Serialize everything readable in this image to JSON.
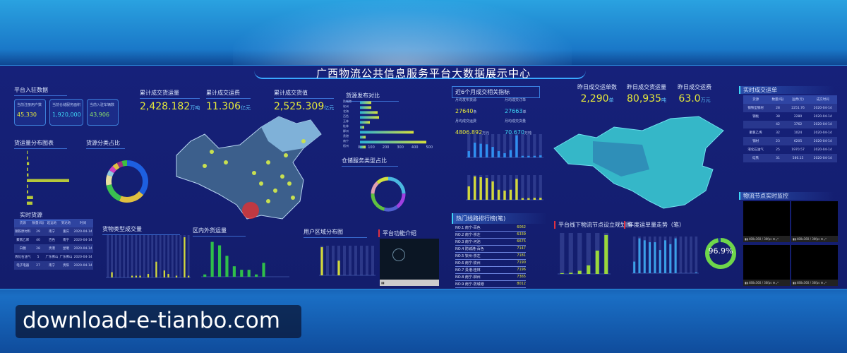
{
  "title": "广西物流公共信息服务平台大数据展示中心",
  "platform": {
    "heading": "平台入驻数据",
    "cards": [
      {
        "label": "当前注册用户数",
        "value": "45,330"
      },
      {
        "label": "当前仓储服务面积",
        "value": "1,920,000"
      },
      {
        "label": "当前入驻车辆数",
        "value": "43,906"
      }
    ]
  },
  "totals": [
    {
      "label": "累计成交货运量",
      "value": "2,428.182",
      "unit": "万吨"
    },
    {
      "label": "累计成交运费",
      "value": "11.306",
      "unit": "亿元"
    },
    {
      "label": "累计成交货值",
      "value": "2,525.309",
      "unit": "亿元"
    }
  ],
  "yesterday": [
    {
      "label": "昨日成交运单数",
      "value": "2,290",
      "unit": "单"
    },
    {
      "label": "昨日成交货运量",
      "value": "80,935",
      "unit": "吨"
    },
    {
      "label": "昨日成交运费",
      "value": "63.0",
      "unit": "万元"
    }
  ],
  "panels": {
    "freight_dist": "货运量分布图表",
    "cargo_share": "货源分类占比",
    "source_compare": "货源发布对比",
    "storage_share": "仓储服务类型占比",
    "realtime_source": "实时货源",
    "cargo_volume": "货物类型成交量",
    "in_out": "区内外货运量",
    "user_region": "用户区域分布图",
    "intro": "平台功能介绍",
    "six_month": "近6个月成交相关指标",
    "realtime_orders": "实时成交运单",
    "monitor": "物流节点实时监控",
    "hot_routes": "热门线路排行榜(笔)",
    "node_plan": "平台线下物流节点设立规划图",
    "annual": "年度运单量走势（笔）"
  },
  "six_month": [
    {
      "label": "月均发布货源",
      "value": "27640",
      "unit": "条"
    },
    {
      "label": "月均成交订单",
      "value": "27663",
      "unit": "单"
    },
    {
      "label": "月均成交运费",
      "value": "4806.892",
      "unit": "万元"
    },
    {
      "label": "月均成交货量",
      "value": "70.670",
      "unit": "万吨"
    }
  ],
  "realtime_source": {
    "headers": [
      "货源",
      "数量(吨)",
      "起运地",
      "到达地",
      "时间"
    ],
    "rows": [
      [
        "钢铁原材料",
        "29",
        "南宁",
        "重庆",
        "2020-04-14"
      ],
      [
        "聚氯乙烯",
        "40",
        "百色",
        "南宁",
        "2020-04-14"
      ],
      [
        "白糖",
        "28",
        "贵港",
        "昆明",
        "2020-04-14"
      ],
      [
        "液化石油气",
        "5",
        "广东佛山",
        "广东佛山",
        "2020-04-14"
      ],
      [
        "电子电器",
        "27",
        "南宁",
        "贵阳",
        "2020-04-14"
      ]
    ]
  },
  "realtime_orders": {
    "headers": [
      "货源",
      "数量(吨)",
      "运费(元)",
      "成交时间"
    ],
    "rows": [
      [
        "钢铁型钢材",
        "28",
        "2251.76",
        "2020-04-14"
      ],
      [
        "钢板",
        "38",
        "2280",
        "2020-04-14"
      ],
      [
        "",
        "42",
        "3762",
        "2020-04-14"
      ],
      [
        "聚氯乙烯",
        "32",
        "1024",
        "2020-04-14"
      ],
      [
        "钢材",
        "23",
        "6205",
        "2020-04-14"
      ],
      [
        "液化石油气",
        "25",
        "1970.57",
        "2020-04-14"
      ],
      [
        "硅铁",
        "31",
        "586.15",
        "2020-04-14"
      ]
    ]
  },
  "hot_routes": [
    {
      "label": "NO.1 南宁-百色",
      "value": "6062"
    },
    {
      "label": "NO.2 南宁-崇左",
      "value": "6339"
    },
    {
      "label": "NO.3 南宁-河池",
      "value": "6675"
    },
    {
      "label": "NO.4 防城港-百色",
      "value": "7147"
    },
    {
      "label": "NO.5 钦州-崇左",
      "value": "7181"
    },
    {
      "label": "NO.6 南宁-钦州",
      "value": "7190"
    },
    {
      "label": "NO.7 贵港-桂林",
      "value": "7196"
    },
    {
      "label": "NO.8 南宁-柳州",
      "value": "7365"
    },
    {
      "label": "NO.9 南宁-防城港",
      "value": "8012"
    }
  ],
  "gauge": {
    "value": "96.9%",
    "fraction": 0.969
  },
  "monitor": {
    "ctrl": "480x360 / 30fps",
    "count": 4
  },
  "colors": {
    "accent": "#e5e83a",
    "cyan": "#3fd6f5",
    "green": "#37c95a",
    "panel": "#16217a"
  },
  "chart_data": [
    {
      "id": "freight",
      "type": "bar",
      "orientation": "horizontal",
      "values": [
        3,
        4,
        8,
        4,
        6,
        150,
        4,
        5,
        22,
        20
      ]
    },
    {
      "id": "cargo_donut",
      "type": "pie",
      "values": [
        36,
        20,
        16,
        8,
        4,
        4,
        4,
        4,
        4
      ]
    },
    {
      "id": "source",
      "type": "bar",
      "orientation": "horizontal",
      "categories": [
        "防城港",
        "钦州",
        "北海",
        "百色",
        "玉林",
        "桂林",
        "柳州",
        "贵港",
        "南宁",
        "梧州"
      ],
      "values": [
        80,
        80,
        125,
        135,
        70,
        30,
        380,
        40,
        470,
        40
      ],
      "xlim": [
        0,
        500
      ],
      "ticks": [
        "0",
        "100",
        "200",
        "300",
        "400",
        "500"
      ]
    },
    {
      "id": "storage_donut",
      "type": "pie",
      "values": [
        24.5,
        15.8,
        13.8,
        21.6,
        12.5,
        12.0
      ]
    },
    {
      "id": "cargo_volume",
      "type": "bar",
      "values": [
        0,
        3,
        0,
        0,
        0,
        0,
        1,
        1,
        1,
        0,
        2,
        0,
        9,
        0,
        4,
        2,
        0,
        1,
        0,
        23,
        1
      ]
    },
    {
      "id": "in_out",
      "type": "bar",
      "values": [
        10,
        150,
        135,
        90,
        45,
        30,
        30,
        10,
        60,
        0,
        0,
        0
      ]
    },
    {
      "id": "user_region",
      "type": "bar",
      "values": [
        24000,
        0,
        0,
        12500,
        0,
        0,
        0,
        0,
        0,
        0
      ]
    },
    {
      "id": "m1",
      "type": "bar",
      "values": [
        60,
        140,
        130,
        125,
        100,
        60,
        40,
        70,
        210,
        15,
        15,
        15,
        20
      ]
    },
    {
      "id": "m2",
      "type": "bar",
      "values": [
        80,
        140,
        135,
        130,
        110,
        60,
        55,
        60,
        125,
        10,
        10,
        12,
        12
      ]
    },
    {
      "id": "node_plan",
      "type": "bar",
      "values": [
        2,
        3,
        8,
        22,
        60,
        100
      ]
    },
    {
      "id": "annual",
      "type": "bar",
      "values": [
        30,
        90,
        85,
        80,
        80,
        60,
        85,
        75,
        90,
        0,
        0,
        0,
        2
      ]
    }
  ]
}
